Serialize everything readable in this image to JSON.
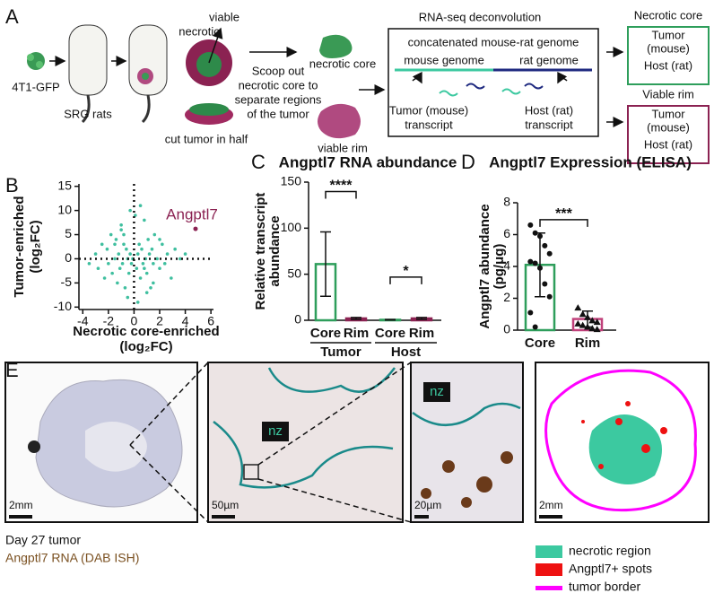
{
  "panels": [
    "A",
    "B",
    "C",
    "D",
    "E"
  ],
  "panel_a": {
    "cells": "4T1-GFP",
    "rats": "SRG rats",
    "necrotic": "necrotic",
    "viable": "viable",
    "cut": "cut tumor in half",
    "scoop": [
      "Scoop out",
      "necrotic core to",
      "separate regions",
      "of the tumor"
    ],
    "core_sample": "necrotic core",
    "rim_sample": "viable rim",
    "deconv_title": "RNA-seq deconvolution",
    "genome": "concatenated mouse-rat genome",
    "mouse_genome": "mouse genome",
    "rat_genome": "rat genome",
    "tumor_transcript": [
      "Tumor (mouse)",
      "transcript"
    ],
    "host_transcript": [
      "Host (rat)",
      "transcript"
    ],
    "core_result": {
      "title": "Necrotic core",
      "tumor": [
        "Tumor",
        "(mouse)"
      ],
      "host": "Host (rat)"
    },
    "rim_result": {
      "title": "Viable rim",
      "tumor": [
        "Tumor",
        "(mouse)"
      ],
      "host": "Host (rat)"
    }
  },
  "chart_data": [
    {
      "type": "scatter",
      "x_label": [
        "Necrotic core-enriched",
        "(log₂FC)"
      ],
      "y_label": [
        "Tumor-enriched",
        "(log₂FC)"
      ],
      "color": "#3fbf9f",
      "zero_lines": true,
      "x": [
        -3.5,
        -3.0,
        -2.8,
        -2.5,
        -2.3,
        -2.1,
        -2.0,
        -1.8,
        -1.7,
        -1.5,
        -1.4,
        -1.3,
        -1.2,
        -1.1,
        -1.0,
        -0.9,
        -0.8,
        -0.7,
        -0.6,
        -0.5,
        -0.4,
        -0.3,
        -0.2,
        -0.1,
        0.1,
        0.2,
        0.3,
        0.4,
        0.5,
        0.6,
        0.7,
        0.8,
        0.9,
        1.0,
        1.1,
        1.2,
        1.3,
        1.4,
        1.5,
        1.6,
        1.8,
        2.0,
        2.2,
        2.4,
        2.6,
        2.9,
        3.2,
        3.6,
        4.0,
        0.5,
        -0.5,
        1.0,
        -1.0,
        0.3,
        -0.3,
        0.8,
        -0.8,
        1.5,
        -1.5,
        2.0
      ],
      "values": [
        -1,
        1,
        -2,
        3,
        -4,
        2,
        -1,
        5,
        -3,
        0,
        4,
        -5,
        1,
        -2,
        7,
        -1,
        3,
        -6,
        2,
        0,
        -3,
        1,
        -1,
        0,
        9,
        -2,
        1,
        3,
        -4,
        2,
        -1,
        8,
        0,
        -3,
        4,
        1,
        -6,
        2,
        -1,
        5,
        0,
        -2,
        3,
        -1,
        1,
        -4,
        2,
        0,
        1,
        11,
        -8,
        -7,
        6,
        -9,
        10,
        -2,
        5,
        -5,
        3,
        4
      ],
      "highlight": {
        "label": "Angptl7",
        "x": 4.8,
        "y": 6.2,
        "color": "#8b2252"
      },
      "xlim": [
        -4.3,
        6.2
      ],
      "xticks": [
        -4,
        -2,
        0,
        2,
        4,
        6
      ],
      "ylim": [
        -10.5,
        15.5
      ],
      "yticks": [
        -10,
        -5,
        0,
        5,
        10,
        15
      ]
    },
    {
      "type": "bar",
      "title": "Angptl7 RNA abundance",
      "y_label": [
        "Relative transcript",
        "abundance"
      ],
      "categories": [
        "Core",
        "Rim",
        "Core",
        "Rim"
      ],
      "groups": [
        "Tumor",
        "Host"
      ],
      "values": [
        61,
        2,
        0.5,
        2
      ],
      "errors": [
        35,
        1,
        0.3,
        1
      ],
      "colors": [
        "#2e9e5b",
        "#8b2252",
        "#2e9e5b",
        "#8b2252"
      ],
      "significance": [
        "****",
        "*"
      ],
      "ylim": [
        0,
        150
      ],
      "yticks": [
        0,
        50,
        100,
        150
      ]
    },
    {
      "type": "bar",
      "title": "Angptl7 Expression (ELISA)",
      "y_label": [
        "Angptl7 abundance",
        "(pg/μg)"
      ],
      "categories": [
        "Core",
        "Rim"
      ],
      "values": [
        4.1,
        0.7
      ],
      "errors": [
        2.0,
        0.5
      ],
      "colors": [
        "#2e9e5b",
        "#c0407a"
      ],
      "markers": [
        "circle",
        "triangle"
      ],
      "points": [
        [
          6.6,
          6.1,
          5.9,
          5.3,
          4.8,
          4.3,
          4.2,
          3.9,
          2.9,
          2.1,
          1.1,
          0.2
        ],
        [
          1.4,
          1.0,
          0.8,
          0.6,
          0.5,
          0.4,
          0.3,
          0.2,
          0.1,
          0.05
        ]
      ],
      "significance": [
        "***"
      ],
      "ylim": [
        0,
        8
      ],
      "yticks": [
        0,
        2,
        4,
        6,
        8
      ]
    }
  ],
  "panel_e": {
    "scale_bars": [
      "2mm",
      "50µm",
      "20µm",
      "2mm"
    ],
    "zone_labels": [
      "nz",
      "nz"
    ],
    "caption": [
      "Day 27 tumor",
      "Angptl7 RNA (DAB ISH)"
    ],
    "legend": [
      {
        "label": "necrotic region",
        "color": "#3cc9a0"
      },
      {
        "label": "Angptl7+ spots",
        "color": "#ee1111"
      },
      {
        "label": "tumor border",
        "color": "#ff00ff"
      }
    ]
  }
}
